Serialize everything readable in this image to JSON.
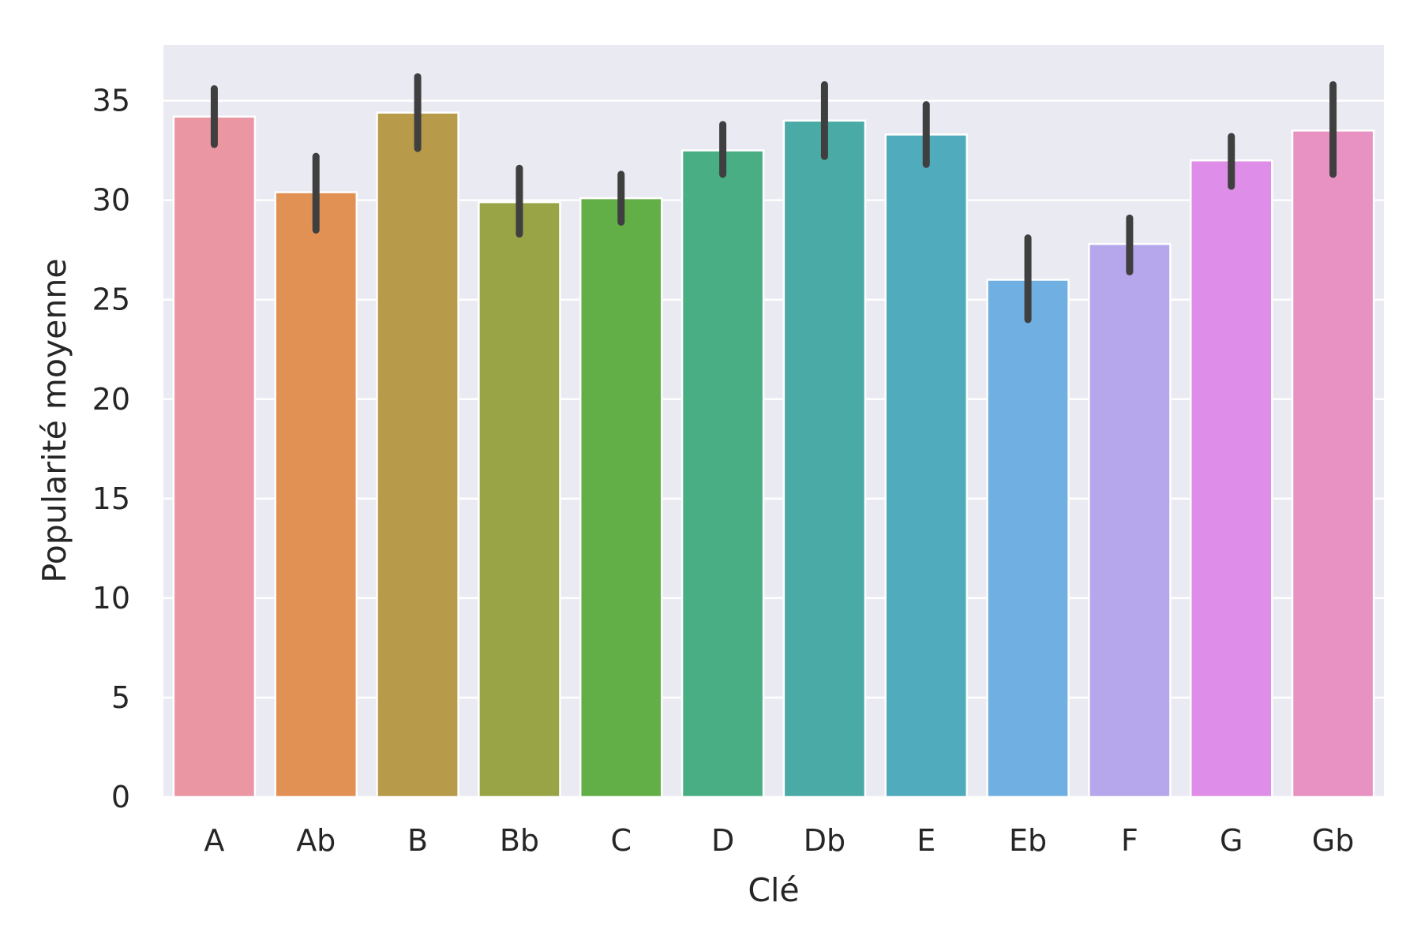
{
  "chart_data": {
    "type": "bar",
    "title": "",
    "xlabel": "Clé",
    "ylabel": "Popularité moyenne",
    "categories": [
      "A",
      "Ab",
      "B",
      "Bb",
      "C",
      "D",
      "Db",
      "E",
      "Eb",
      "F",
      "G",
      "Gb"
    ],
    "values": [
      34.2,
      30.4,
      34.4,
      29.9,
      30.1,
      32.5,
      34.0,
      33.3,
      26.0,
      27.8,
      32.0,
      33.5
    ],
    "error_low": [
      32.8,
      28.5,
      32.6,
      28.3,
      28.9,
      31.3,
      32.2,
      31.8,
      24.0,
      26.4,
      30.7,
      31.3
    ],
    "error_high": [
      35.6,
      32.2,
      36.2,
      31.6,
      31.3,
      33.8,
      35.8,
      34.8,
      28.1,
      29.1,
      33.2,
      35.8
    ],
    "colors": [
      "#ea96a3",
      "#e19153",
      "#b79b4a",
      "#99a447",
      "#62af48",
      "#4aae84",
      "#4aaaa5",
      "#50abbd",
      "#6fafe1",
      "#b6a7ec",
      "#de8ee8",
      "#e891c3"
    ],
    "yticks": [
      0,
      5,
      10,
      15,
      20,
      25,
      30,
      35
    ],
    "ylim": [
      0,
      37.8
    ],
    "grid": true,
    "background": "#eaeaf2",
    "error_color": "#3f3f3f"
  }
}
